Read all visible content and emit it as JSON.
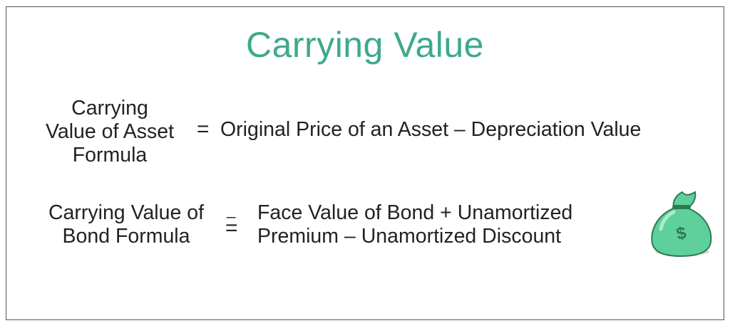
{
  "title": "Carrying Value",
  "colors": {
    "accent": "#3da98d",
    "text": "#222222",
    "bag_green": "#5fd09c",
    "bag_dark": "#2d7a52"
  },
  "formula_asset": {
    "label_lines": [
      "Carrying",
      "Value of Asset",
      "Formula"
    ],
    "equals": "=",
    "expression": "Original Price of an Asset – Depreciation Value"
  },
  "formula_bond": {
    "label_lines": [
      "Carrying Value of",
      "Bond Formula"
    ],
    "equals_small": "_",
    "equals": "=",
    "expression_lines": [
      "Face Value of Bond + Unamortized",
      "Premium – Unamortized Discount"
    ]
  },
  "icon": {
    "name": "money-bag-icon",
    "symbol": "$"
  }
}
